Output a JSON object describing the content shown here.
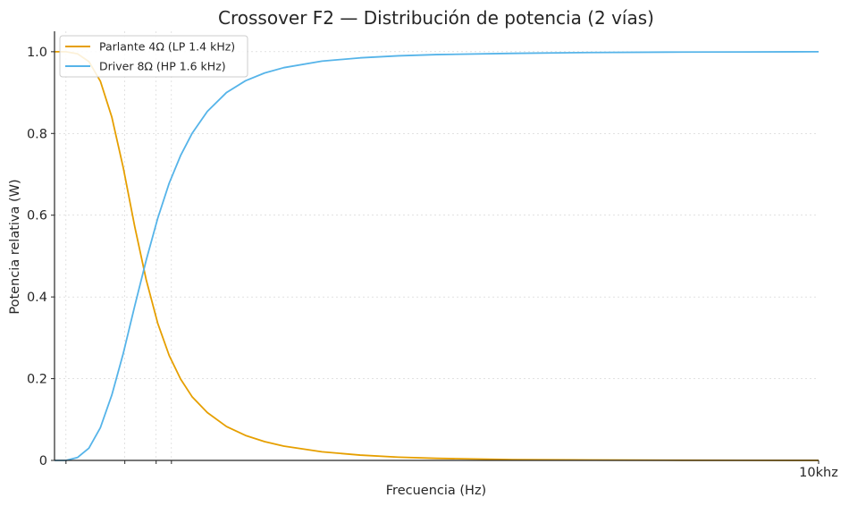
{
  "chart_data": {
    "type": "line",
    "title": "Crossover F2 — Distribución de potencia (2 vías)",
    "xlabel": "Frecuencia (Hz)",
    "ylabel": "Potencia relativa (W)",
    "xlim": [
      0,
      10000
    ],
    "ylim": [
      0,
      1.05
    ],
    "grid": true,
    "legend_position": "top-left",
    "y_ticks": [
      0,
      0.2,
      0.4,
      0.6,
      0.8,
      1.0
    ],
    "y_tick_labels": [
      "0",
      "0.2",
      "0.4",
      "0.6",
      "0.8",
      "1.0"
    ],
    "x_tick_labels": [
      "10khz"
    ],
    "x_unlabeled_ticks": [
      150,
      920,
      1330,
      1530
    ],
    "series": [
      {
        "name": "Parlante 4Ω (LP 1.4 kHz)",
        "color": "#E69F00",
        "x": [
          0,
          150,
          300,
          450,
          600,
          750,
          900,
          1050,
          1200,
          1350,
          1500,
          1650,
          1800,
          2000,
          2250,
          2500,
          2750,
          3000,
          3500,
          4000,
          4500,
          5000,
          6000,
          7000,
          8000,
          9000,
          10000
        ],
        "y": [
          1.0,
          1.0,
          0.995,
          0.976,
          0.928,
          0.84,
          0.716,
          0.572,
          0.442,
          0.336,
          0.257,
          0.199,
          0.156,
          0.117,
          0.083,
          0.061,
          0.046,
          0.035,
          0.021,
          0.013,
          0.008,
          0.005,
          0.002,
          0.001,
          0.0005,
          0.0002,
          0.0001
        ]
      },
      {
        "name": "Driver 8Ω (HP 1.6 kHz)",
        "color": "#56B4E9",
        "x": [
          0,
          150,
          300,
          450,
          600,
          750,
          900,
          1050,
          1200,
          1350,
          1500,
          1650,
          1800,
          2000,
          2250,
          2500,
          2750,
          3000,
          3500,
          4000,
          4500,
          5000,
          6000,
          7000,
          8000,
          9000,
          10000
        ],
        "y": [
          0.0,
          0.0,
          0.007,
          0.03,
          0.08,
          0.16,
          0.262,
          0.378,
          0.49,
          0.592,
          0.678,
          0.746,
          0.8,
          0.854,
          0.9,
          0.929,
          0.948,
          0.961,
          0.977,
          0.985,
          0.99,
          0.993,
          0.996,
          0.998,
          0.999,
          0.9995,
          1.0
        ]
      }
    ]
  }
}
